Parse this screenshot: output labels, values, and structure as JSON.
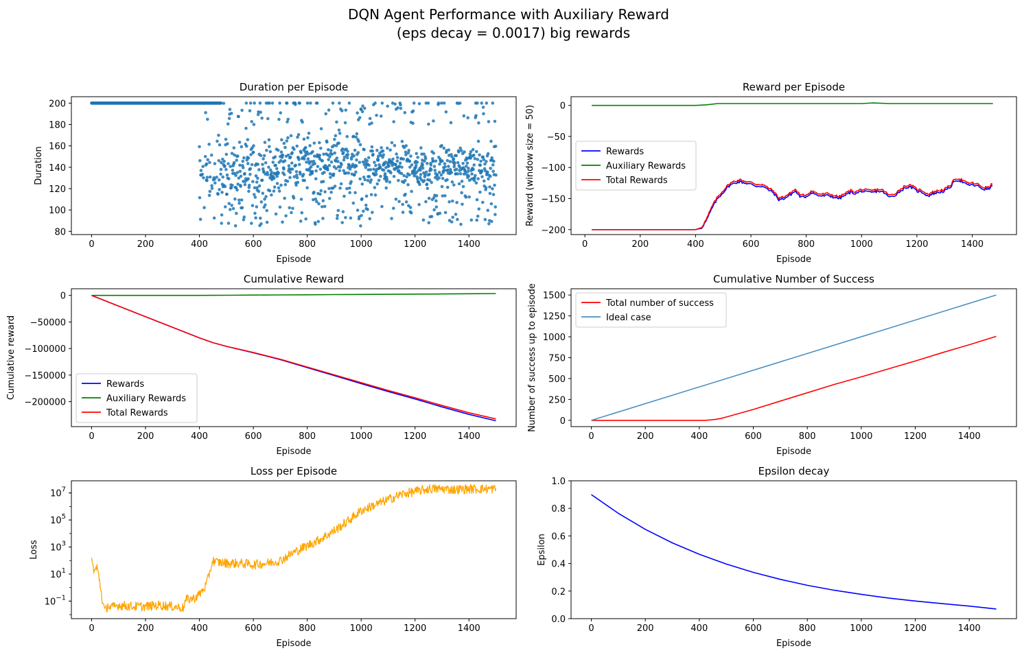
{
  "figure": {
    "title_line1": "DQN Agent Performance with Auxiliary Reward",
    "title_line2": "(eps decay = 0.0017) big rewards"
  },
  "colors": {
    "scatter": "#1f77b4",
    "ideal": "#4a90c4",
    "rewards": "#0000ff",
    "auxiliary": "#008000",
    "total": "#ff0000",
    "loss": "#ffa500",
    "epsilon": "#0000ff"
  },
  "chart_data": [
    {
      "id": "duration",
      "type": "scatter",
      "title": "Duration per Episode",
      "xlabel": "Episode",
      "ylabel": "Duration",
      "xlim": [
        -75,
        1575
      ],
      "ylim": [
        77,
        206
      ],
      "xticks": [
        0,
        200,
        400,
        600,
        800,
        1000,
        1200,
        1400
      ],
      "yticks": [
        80,
        100,
        120,
        140,
        160,
        180,
        200
      ],
      "series": [
        {
          "color": "#1f77b4",
          "segments": [
            {
              "x0": 0,
              "x1": 480,
              "value": 200,
              "note_count": 480
            },
            {
              "x0": 400,
              "x1": 1500,
              "clusters": [
                {
                  "from": 400,
                  "to": 700,
                  "center": 135,
                  "spread": 45
                },
                {
                  "from": 700,
                  "to": 1000,
                  "center": 145,
                  "spread": 40
                },
                {
                  "from": 1000,
                  "to": 1500,
                  "center": 140,
                  "spread": 30
                }
              ],
              "low_band": [
                85,
                115
              ],
              "high_band": [
                180,
                200
              ]
            }
          ]
        }
      ]
    },
    {
      "id": "reward",
      "type": "line",
      "title": "Reward per Episode",
      "xlabel": "Episode",
      "ylabel": "Reward (window size = 50)",
      "xlim": [
        -50,
        1560
      ],
      "ylim": [
        -208,
        14
      ],
      "xticks": [
        0,
        200,
        400,
        600,
        800,
        1000,
        1200,
        1400
      ],
      "yticks": [
        0,
        -50,
        -100,
        -150,
        -200
      ],
      "yticklabels": [
        "0",
        "−50",
        "−100",
        "−150",
        "−200"
      ],
      "legend": "center-left",
      "series": [
        {
          "name": "Rewards",
          "color": "#0000ff",
          "x": [
            25,
            400,
            420,
            440,
            460,
            480,
            500,
            520,
            540,
            560,
            580,
            600,
            620,
            640,
            660,
            680,
            700,
            720,
            740,
            760,
            780,
            800,
            820,
            840,
            860,
            880,
            900,
            920,
            940,
            960,
            980,
            1000,
            1020,
            1040,
            1060,
            1080,
            1100,
            1120,
            1140,
            1160,
            1180,
            1200,
            1220,
            1240,
            1260,
            1280,
            1300,
            1320,
            1340,
            1360,
            1380,
            1400,
            1420,
            1440,
            1460,
            1475
          ],
          "y": [
            -200,
            -200,
            -198,
            -185,
            -165,
            -150,
            -140,
            -130,
            -125,
            -123,
            -125,
            -127,
            -130,
            -130,
            -135,
            -140,
            -152,
            -150,
            -145,
            -138,
            -148,
            -147,
            -140,
            -145,
            -146,
            -145,
            -148,
            -150,
            -145,
            -140,
            -142,
            -138,
            -140,
            -140,
            -138,
            -140,
            -148,
            -145,
            -138,
            -132,
            -132,
            -138,
            -140,
            -146,
            -142,
            -140,
            -138,
            -132,
            -120,
            -122,
            -128,
            -128,
            -130,
            -135,
            -135,
            -128
          ]
        },
        {
          "name": "Auxiliary Rewards",
          "color": "#008000",
          "x": [
            25,
            400,
            440,
            480,
            520,
            600,
            800,
            1000,
            1040,
            1100,
            1200,
            1300,
            1400,
            1475
          ],
          "y": [
            0,
            0,
            1,
            3,
            3,
            3,
            3,
            3,
            4,
            3,
            3,
            3,
            3,
            3
          ]
        },
        {
          "name": "Total Rewards",
          "color": "#ff0000",
          "x": [
            25,
            400,
            420,
            440,
            460,
            480,
            500,
            520,
            540,
            560,
            580,
            600,
            620,
            640,
            660,
            680,
            700,
            720,
            740,
            760,
            780,
            800,
            820,
            840,
            860,
            880,
            900,
            920,
            940,
            960,
            980,
            1000,
            1020,
            1040,
            1060,
            1080,
            1100,
            1120,
            1140,
            1160,
            1180,
            1200,
            1220,
            1240,
            1260,
            1280,
            1300,
            1320,
            1340,
            1360,
            1380,
            1400,
            1420,
            1440,
            1460,
            1475
          ],
          "y": [
            -200,
            -200,
            -197,
            -183,
            -162,
            -147,
            -137,
            -127,
            -122,
            -120,
            -122,
            -124,
            -127,
            -127,
            -132,
            -137,
            -149,
            -147,
            -142,
            -135,
            -145,
            -144,
            -137,
            -142,
            -143,
            -142,
            -145,
            -147,
            -142,
            -137,
            -139,
            -135,
            -137,
            -137,
            -135,
            -137,
            -145,
            -142,
            -135,
            -129,
            -129,
            -135,
            -137,
            -143,
            -139,
            -137,
            -135,
            -129,
            -117,
            -119,
            -125,
            -125,
            -127,
            -132,
            -132,
            -125
          ]
        }
      ]
    },
    {
      "id": "cumulative",
      "type": "line",
      "title": "Cumulative Reward",
      "xlabel": "Episode",
      "ylabel": "Cumulative reward",
      "xlim": [
        -75,
        1575
      ],
      "ylim": [
        -247000,
        12500
      ],
      "xticks": [
        0,
        200,
        400,
        600,
        800,
        1000,
        1200,
        1400
      ],
      "yticks": [
        0,
        -50000,
        -100000,
        -150000,
        -200000
      ],
      "yticklabels": [
        "0",
        "−50000",
        "−100000",
        "−150000",
        "−200000"
      ],
      "legend": "lower-left",
      "series": [
        {
          "name": "Rewards",
          "color": "#0000ff",
          "x": [
            0,
            200,
            400,
            450,
            500,
            600,
            700,
            800,
            900,
            1000,
            1100,
            1200,
            1300,
            1400,
            1500
          ],
          "y": [
            0,
            -40000,
            -80000,
            -89000,
            -96000,
            -108000,
            -121000,
            -136000,
            -151000,
            -166000,
            -181000,
            -195000,
            -210000,
            -224000,
            -236000
          ]
        },
        {
          "name": "Auxiliary Rewards",
          "color": "#008000",
          "x": [
            0,
            200,
            400,
            450,
            500,
            600,
            700,
            800,
            900,
            1000,
            1100,
            1200,
            1300,
            1400,
            1500
          ],
          "y": [
            0,
            0,
            0,
            100,
            250,
            600,
            900,
            1200,
            1500,
            1800,
            2100,
            2400,
            2700,
            3100,
            3500
          ]
        },
        {
          "name": "Total Rewards",
          "color": "#ff0000",
          "x": [
            0,
            200,
            400,
            450,
            500,
            600,
            700,
            800,
            900,
            1000,
            1100,
            1200,
            1300,
            1400,
            1500
          ],
          "y": [
            0,
            -40000,
            -80000,
            -89000,
            -95800,
            -107500,
            -120200,
            -134800,
            -149500,
            -164200,
            -178900,
            -192600,
            -207300,
            -220900,
            -232500
          ]
        }
      ]
    },
    {
      "id": "success",
      "type": "line",
      "title": "Cumulative Number of Success",
      "xlabel": "Episode",
      "ylabel": "Number of success up to episode",
      "xlim": [
        -75,
        1575
      ],
      "ylim": [
        -75,
        1575
      ],
      "xticks": [
        0,
        200,
        400,
        600,
        800,
        1000,
        1200,
        1400
      ],
      "yticks": [
        0,
        250,
        500,
        750,
        1000,
        1250,
        1500
      ],
      "legend": "upper-left",
      "series": [
        {
          "name": "Total number of success",
          "color": "#ff0000",
          "x": [
            0,
            420,
            440,
            460,
            480,
            500,
            600,
            700,
            800,
            900,
            1000,
            1100,
            1200,
            1300,
            1400,
            1500
          ],
          "y": [
            0,
            0,
            5,
            12,
            22,
            40,
            130,
            230,
            330,
            430,
            520,
            615,
            710,
            810,
            905,
            1005
          ]
        },
        {
          "name": "Ideal case",
          "color": "#4a90c4",
          "x": [
            0,
            1500
          ],
          "y": [
            0,
            1500
          ]
        }
      ]
    },
    {
      "id": "loss",
      "type": "line",
      "title": "Loss per Episode",
      "xlabel": "Episode",
      "ylabel": "Loss",
      "yscale": "log",
      "xlim": [
        -75,
        1575
      ],
      "ylim_log10": [
        -2.3,
        7.9
      ],
      "xticks": [
        0,
        200,
        400,
        600,
        800,
        1000,
        1200,
        1400
      ],
      "ytick_exponents": [
        7,
        5,
        3,
        1,
        -1
      ],
      "series": [
        {
          "color": "#ffa500",
          "x": [
            0,
            10,
            20,
            30,
            40,
            50,
            60,
            70,
            100,
            150,
            200,
            250,
            300,
            340,
            350,
            380,
            400,
            420,
            430,
            440,
            450,
            460,
            500,
            550,
            600,
            650,
            700,
            750,
            800,
            850,
            900,
            950,
            1000,
            1050,
            1100,
            1150,
            1200,
            1250,
            1300,
            1350,
            1400,
            1450,
            1500
          ],
          "y_log10": [
            2.0,
            1.2,
            1.5,
            0.5,
            -1.0,
            -1.8,
            -1.3,
            -1.5,
            -1.3,
            -1.4,
            -1.4,
            -1.3,
            -1.4,
            -1.5,
            -0.9,
            -0.8,
            -0.5,
            0.0,
            0.5,
            1.3,
            2.0,
            1.9,
            1.8,
            1.8,
            1.7,
            1.8,
            2.0,
            2.6,
            3.1,
            3.6,
            4.2,
            4.9,
            5.7,
            6.1,
            6.5,
            6.9,
            7.1,
            7.3,
            7.3,
            7.25,
            7.3,
            7.3,
            7.3
          ],
          "noise": 0.35
        }
      ]
    },
    {
      "id": "epsilon",
      "type": "line",
      "title": "Epsilon decay",
      "xlabel": "Episode",
      "ylabel": "Epsilon",
      "xlim": [
        -75,
        1575
      ],
      "ylim": [
        0.0,
        1.0
      ],
      "xticks": [
        0,
        200,
        400,
        600,
        800,
        1000,
        1200,
        1400
      ],
      "yticks": [
        0.0,
        0.2,
        0.4,
        0.6,
        0.8,
        1.0
      ],
      "yticklabels": [
        "0.0",
        "0.2",
        "0.4",
        "0.6",
        "0.8",
        "1.0"
      ],
      "series": [
        {
          "color": "#0000ff",
          "x": [
            0,
            100,
            200,
            300,
            400,
            500,
            600,
            700,
            800,
            900,
            1000,
            1100,
            1200,
            1300,
            1400,
            1500
          ],
          "y": [
            0.9,
            0.764,
            0.648,
            0.55,
            0.467,
            0.396,
            0.336,
            0.285,
            0.242,
            0.206,
            0.176,
            0.15,
            0.128,
            0.109,
            0.091,
            0.07
          ]
        }
      ]
    }
  ]
}
